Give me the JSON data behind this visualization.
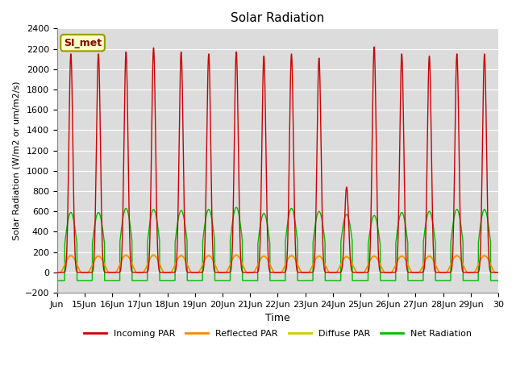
{
  "title": "Solar Radiation",
  "ylabel": "Solar Radiation (W/m2 or um/m2/s)",
  "xlabel": "Time",
  "ylim": [
    -200,
    2400
  ],
  "annotation": "SI_met",
  "background_color": "#dcdcdc",
  "grid_color": "#ffffff",
  "series": {
    "incoming_par": {
      "color": "#cc0000",
      "label": "Incoming PAR",
      "lw": 1.0
    },
    "reflected_par": {
      "color": "#ff8800",
      "label": "Reflected PAR",
      "lw": 1.0
    },
    "diffuse_par": {
      "color": "#cccc00",
      "label": "Diffuse PAR",
      "lw": 1.0
    },
    "net_radiation": {
      "color": "#00bb00",
      "label": "Net Radiation",
      "lw": 1.0
    }
  },
  "x_tick_labels": [
    "Jun",
    "15Jun",
    "16Jun",
    "17Jun",
    "18Jun",
    "19Jun",
    "20Jun",
    "21Jun",
    "22Jun",
    "23Jun",
    "24Jun",
    "25Jun",
    "26Jun",
    "27Jun",
    "28Jun",
    "29Jun",
    "30"
  ],
  "day_peaks_incoming": [
    2150,
    2150,
    2170,
    2210,
    2170,
    2150,
    2170,
    2130,
    2150,
    2110,
    840,
    2220,
    2150,
    2130,
    2150,
    2150
  ],
  "day_peaks_net": [
    590,
    590,
    630,
    620,
    610,
    620,
    640,
    580,
    630,
    600,
    570,
    560,
    590,
    600,
    620,
    620
  ],
  "day_peaks_diffuse": [
    170,
    165,
    175,
    175,
    170,
    170,
    175,
    165,
    170,
    165,
    160,
    165,
    165,
    165,
    170,
    170
  ],
  "night_net": -80,
  "daylight_half_sharp": 3.5,
  "daylight_half_broad": 5.5,
  "n_days": 16
}
